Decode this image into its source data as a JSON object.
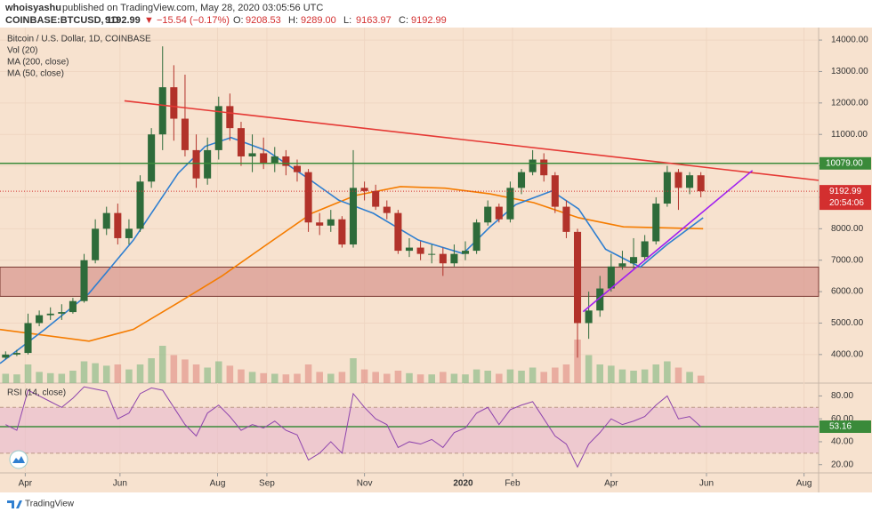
{
  "header": {
    "author": "whoisyashu",
    "published": "published on TradingView.com, May 28, 2020 03:05:56 UTC",
    "symbol": "COINBASE:BTCUSD, 1D",
    "price": "9192.99",
    "change": "▼ −15.54 (−0.17%)",
    "ohlc": [
      {
        "label": "O:",
        "value": "9208.53"
      },
      {
        "label": "H:",
        "value": "9289.00"
      },
      {
        "label": "L:",
        "value": "9163.97"
      },
      {
        "label": "C:",
        "value": "9192.99"
      }
    ]
  },
  "footer": {
    "brand": "TradingView"
  },
  "chart_data": [
    {
      "type": "candlestick",
      "title": "Bitcoin / U.S. Dollar, 1D, COINBASE",
      "volume_label": "Vol (20)",
      "up_color": "#2e6b3a",
      "down_color": "#b2322a",
      "grid": true,
      "xlim": [
        -0.5,
        72.5
      ],
      "ylim": [
        3091,
        14398
      ],
      "xticks": [
        {
          "value": 1.75,
          "label": "Apr"
        },
        {
          "value": 10.2,
          "label": "Jun"
        },
        {
          "value": 18.9,
          "label": "Aug"
        },
        {
          "value": 23.3,
          "label": "Sep"
        },
        {
          "value": 32,
          "label": "Nov"
        },
        {
          "value": 40.8,
          "label": "2020"
        },
        {
          "value": 45.2,
          "label": "Feb"
        },
        {
          "value": 54,
          "label": "Apr"
        },
        {
          "value": 62.5,
          "label": "Jun"
        },
        {
          "value": 71.2,
          "label": "Aug"
        }
      ],
      "yticks": [
        {
          "value": 4000,
          "label": "4000.00"
        },
        {
          "value": 5000,
          "label": "5000.00"
        },
        {
          "value": 6000,
          "label": "6000.00"
        },
        {
          "value": 7000,
          "label": "7000.00"
        },
        {
          "value": 8000,
          "label": "8000.00"
        },
        {
          "value": 9000,
          "label": "9000.00"
        },
        {
          "value": 10000,
          "label": "10000.00"
        },
        {
          "value": 11000,
          "label": "11000.00"
        },
        {
          "value": 12000,
          "label": "12000.00"
        },
        {
          "value": 13000,
          "label": "13000.00"
        },
        {
          "value": 14000,
          "label": "14000.00"
        }
      ],
      "open": [
        3900,
        4000,
        4050,
        5000,
        5250,
        5300,
        5350,
        5700,
        7000,
        8000,
        8500,
        7700,
        8000,
        9500,
        11000,
        12500,
        11500,
        10500,
        9600,
        10500,
        11900,
        11200,
        10300,
        10400,
        10100,
        10300,
        10000,
        9800,
        8200,
        8100,
        8300,
        7500,
        9300,
        9200,
        8700,
        8500,
        7300,
        7400,
        7200,
        7200,
        6900,
        7200,
        7300,
        8200,
        8700,
        8300,
        9300,
        9800,
        10200,
        9700,
        8700,
        7900,
        5000,
        5400,
        6100,
        6800,
        6900,
        7100,
        7600,
        8800,
        9800,
        9300,
        9700
      ],
      "high": [
        4100,
        4150,
        5300,
        5400,
        5500,
        5600,
        5800,
        7200,
        8300,
        8700,
        8800,
        8300,
        9700,
        11200,
        13800,
        13200,
        12900,
        11000,
        10900,
        12200,
        12300,
        11400,
        11000,
        10900,
        10600,
        10500,
        10200,
        9900,
        8500,
        8600,
        8400,
        10500,
        9500,
        9400,
        8900,
        8600,
        7700,
        7600,
        7500,
        7400,
        7500,
        7600,
        8300,
        8900,
        8800,
        9500,
        9900,
        10500,
        10400,
        9800,
        8900,
        8000,
        6000,
        6500,
        7200,
        7300,
        7700,
        7800,
        9000,
        10000,
        9900,
        9800,
        9800
      ],
      "low": [
        3850,
        3950,
        4000,
        4900,
        5100,
        5100,
        5300,
        5650,
        6900,
        7800,
        7500,
        7500,
        7900,
        9300,
        10500,
        10800,
        10300,
        9300,
        9400,
        10200,
        10800,
        10000,
        9800,
        9900,
        9800,
        9700,
        9500,
        7900,
        7800,
        7900,
        7400,
        7400,
        8900,
        8600,
        8300,
        7200,
        7100,
        7000,
        6900,
        6500,
        6800,
        7000,
        7200,
        8100,
        8200,
        8200,
        9100,
        9700,
        9500,
        8500,
        7700,
        3900,
        4500,
        5200,
        6000,
        6700,
        6700,
        7000,
        7500,
        8700,
        8600,
        9100,
        9000
      ],
      "close": [
        4000,
        4050,
        5000,
        5250,
        5300,
        5350,
        5700,
        7000,
        8000,
        8500,
        7700,
        8000,
        9500,
        11000,
        12500,
        11500,
        10500,
        9600,
        10500,
        11900,
        11200,
        10300,
        10400,
        10100,
        10300,
        10000,
        9800,
        8200,
        8100,
        8300,
        7500,
        9300,
        9200,
        8700,
        8500,
        7300,
        7400,
        7200,
        7200,
        6900,
        7200,
        7300,
        8200,
        8700,
        8300,
        9300,
        9800,
        10200,
        9700,
        8700,
        7900,
        5000,
        5400,
        6100,
        6800,
        6900,
        7100,
        7600,
        8800,
        9800,
        9300,
        9700,
        9192.99
      ],
      "vlim": [
        0,
        100
      ],
      "volume": [
        15,
        14,
        30,
        18,
        16,
        15,
        20,
        35,
        32,
        28,
        30,
        22,
        30,
        40,
        60,
        45,
        38,
        30,
        25,
        35,
        28,
        22,
        18,
        16,
        15,
        14,
        15,
        30,
        18,
        15,
        18,
        40,
        22,
        18,
        15,
        20,
        16,
        14,
        14,
        18,
        15,
        14,
        22,
        20,
        15,
        22,
        20,
        25,
        18,
        25,
        30,
        70,
        45,
        30,
        28,
        22,
        20,
        22,
        30,
        35,
        25,
        18,
        12
      ],
      "series": [
        {
          "name": "MA (200, close)",
          "color": "#f57c00",
          "x": [
            -0.5,
            7.44,
            11.4,
            15.4,
            19.3,
            23.3,
            27.3,
            31.2,
            35.2,
            39.2,
            43.2,
            47.1,
            51.1,
            55.1,
            62.2
          ],
          "values": [
            4795,
            4426,
            4800,
            5650,
            6500,
            7500,
            8490,
            9060,
            9340,
            9290,
            9110,
            8830,
            8350,
            8060,
            8000
          ]
        },
        {
          "name": "MA (50, close)",
          "color": "#2f7fd0",
          "x": [
            -0.5,
            3.5,
            7.4,
            11.4,
            15.4,
            17.8,
            20.1,
            23.3,
            26.9,
            29.7,
            32.8,
            36.8,
            40.8,
            43.2,
            45.5,
            48.7,
            51.1,
            53.5,
            56.6,
            59.0,
            62.2
          ],
          "values": [
            3716,
            4800,
            5930,
            7640,
            9770,
            10620,
            10900,
            10480,
            9620,
            8910,
            8490,
            7640,
            7210,
            8060,
            8770,
            9200,
            8630,
            7350,
            6780,
            7500,
            8350
          ]
        }
      ],
      "trend_lines": [
        {
          "color": "#e53935",
          "x": [
            10.6,
            72.5
          ],
          "values": [
            12068,
            9540
          ]
        },
        {
          "color": "#a020f0",
          "x": [
            51.5,
            66.6
          ],
          "values": [
            5364,
            9852
          ]
        }
      ],
      "zone": {
        "color": "#d99a92",
        "values": [
          5850,
          6780
        ]
      },
      "hline": {
        "value": 10079,
        "label": "10079.00",
        "color": "#3a8a3a"
      },
      "last_price": {
        "value": 9192.99,
        "label": "9192.99",
        "countdown": "20:54:06",
        "color": "#d32f2f"
      }
    },
    {
      "type": "line",
      "title": "RSI (14, close)",
      "color": "#8e44ad",
      "band_color": "#e7b9cf",
      "bands": [
        30,
        70
      ],
      "ylim": [
        12.8,
        91.2
      ],
      "yticks": [
        {
          "value": 20,
          "label": "20.00"
        },
        {
          "value": 40,
          "label": "40.00"
        },
        {
          "value": 60,
          "label": "60.00"
        },
        {
          "value": 80,
          "label": "80.00"
        }
      ],
      "values": [
        55,
        50,
        85,
        80,
        75,
        70,
        78,
        88,
        86,
        84,
        60,
        65,
        82,
        87,
        85,
        70,
        55,
        45,
        65,
        72,
        62,
        50,
        55,
        52,
        58,
        50,
        46,
        24,
        30,
        40,
        30,
        82,
        70,
        60,
        55,
        35,
        40,
        38,
        42,
        35,
        48,
        52,
        65,
        70,
        55,
        68,
        72,
        75,
        60,
        45,
        38,
        18,
        38,
        48,
        60,
        55,
        58,
        62,
        72,
        80,
        60,
        62,
        53.16
      ],
      "last": {
        "value": 53.16,
        "label": "53.16",
        "color": "#3a8a3a"
      }
    }
  ]
}
